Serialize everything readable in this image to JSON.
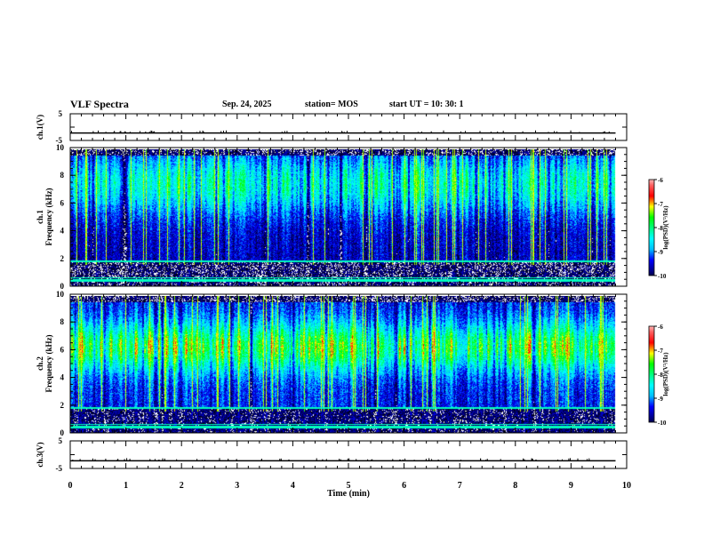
{
  "header": {
    "title": "VLF Spectra",
    "date": "Sep. 24, 2025",
    "station": "station= MOS",
    "start_ut": "start  UT =   10: 30: 1"
  },
  "colors": {
    "palette": [
      "#000000",
      "#00008b",
      "#0000ff",
      "#00bfff",
      "#00ffff",
      "#00ff7f",
      "#00ff00",
      "#ffff00",
      "#ff0000",
      "#ff6060",
      "#ffffff"
    ]
  },
  "chart_data": [
    {
      "type": "line",
      "id": "ch1-volt",
      "ylabel": "ch.1(V)",
      "ylim": [
        -5,
        5
      ],
      "y_ticklabels": [
        "5",
        "-5"
      ],
      "x": [
        0,
        9.8
      ],
      "series": [
        {
          "values": [
            -2.2,
            -2.2
          ]
        }
      ]
    },
    {
      "type": "heatmap",
      "id": "ch1-spectrogram",
      "ylabel": "ch.1\nFrequency (kHz)",
      "ylim": [
        0,
        10
      ],
      "y_ticks": [
        0,
        2,
        4,
        6,
        8,
        10
      ],
      "xlim": [
        0,
        10
      ],
      "data_end_min": 9.8,
      "colorbar": {
        "label": "log(PSD)(V²/Hz)",
        "range": [
          -10,
          -6
        ],
        "ticks": [
          -6,
          -7,
          -8,
          -9,
          -10
        ]
      }
    },
    {
      "type": "heatmap",
      "id": "ch2-spectrogram",
      "ylabel": "ch.2\nFrequency (kHz)",
      "ylim": [
        0,
        10
      ],
      "y_ticks": [
        0,
        2,
        4,
        6,
        8,
        10
      ],
      "xlim": [
        0,
        10
      ],
      "data_end_min": 9.8,
      "colorbar": {
        "label": "log(PSD)(V²/Hz)",
        "range": [
          -10,
          -6
        ],
        "ticks": [
          -6,
          -7,
          -8,
          -9,
          -10
        ]
      }
    },
    {
      "type": "line",
      "id": "ch3-volt",
      "ylabel": "ch.3(V)",
      "ylim": [
        -5,
        5
      ],
      "y_ticklabels": [
        "5",
        "-5"
      ],
      "x": [
        0,
        9.8
      ],
      "series": [
        {
          "values": [
            -2.2,
            -2.2
          ]
        }
      ]
    }
  ],
  "xaxis": {
    "label": "Time  (min)",
    "range": [
      0,
      10
    ],
    "ticks": [
      0,
      1,
      2,
      3,
      4,
      5,
      6,
      7,
      8,
      9,
      10
    ]
  }
}
